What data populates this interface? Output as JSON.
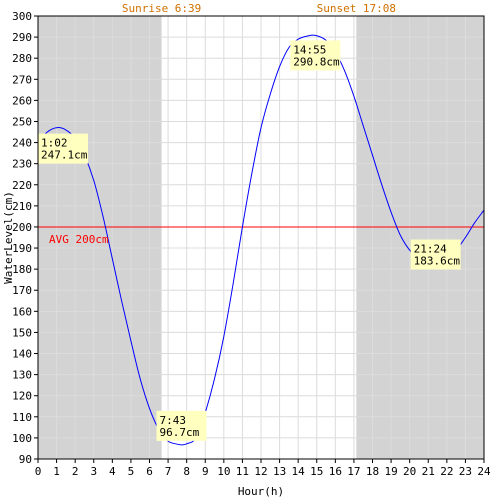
{
  "chart_data": {
    "type": "line",
    "title": "",
    "xlabel": "Hour(h)",
    "ylabel": "WaterLevel(cm)",
    "xlim": [
      0,
      24
    ],
    "ylim": [
      90,
      300
    ],
    "x_ticks": [
      0,
      1,
      2,
      3,
      4,
      5,
      6,
      7,
      8,
      9,
      10,
      11,
      12,
      13,
      14,
      15,
      16,
      17,
      18,
      19,
      20,
      21,
      22,
      23,
      24
    ],
    "y_ticks": [
      90,
      100,
      110,
      120,
      130,
      140,
      150,
      160,
      170,
      180,
      190,
      200,
      210,
      220,
      230,
      240,
      250,
      260,
      270,
      280,
      290,
      300
    ],
    "grid": true,
    "sunrise": {
      "label": "Sunrise 6:39",
      "hour": 6.65
    },
    "sunset": {
      "label": "Sunset 17:08",
      "hour": 17.13
    },
    "average": {
      "label": "AVG 200cm",
      "value": 200
    },
    "series": [
      {
        "name": "",
        "x": [
          0,
          0.5,
          1.03,
          1.5,
          2,
          2.5,
          3,
          3.5,
          4,
          4.5,
          5,
          5.5,
          6,
          6.5,
          7,
          7.5,
          7.72,
          8,
          8.5,
          9,
          9.5,
          10,
          10.5,
          11,
          11.5,
          12,
          12.5,
          13,
          13.5,
          14,
          14.5,
          14.92,
          15.5,
          16,
          16.5,
          17,
          17.5,
          18,
          18.5,
          19,
          19.5,
          20,
          20.5,
          21,
          21.4,
          22,
          22.5,
          23,
          23.5,
          24
        ],
        "values": [
          240,
          245,
          247.1,
          246,
          242,
          234,
          222,
          205,
          185,
          165,
          146,
          128,
          114,
          104,
          98.5,
          97,
          96.7,
          97.2,
          100,
          112,
          128,
          148,
          173,
          200,
          225,
          247,
          263,
          276,
          285,
          289,
          290.5,
          290.8,
          288.5,
          283,
          274,
          262,
          248,
          234,
          220,
          207,
          196,
          189,
          185,
          183.8,
          183.6,
          185,
          189,
          195,
          202,
          208
        ]
      }
    ],
    "annotations": [
      {
        "time": "1:02",
        "value_label": "247.1cm",
        "x": 1.03,
        "y": 247.1
      },
      {
        "time": "7:43",
        "value_label": "96.7cm",
        "x": 7.72,
        "y": 96.7
      },
      {
        "time": "14:55",
        "value_label": "290.8cm",
        "x": 14.92,
        "y": 290.8
      },
      {
        "time": "21:24",
        "value_label": "183.6cm",
        "x": 21.4,
        "y": 183.6
      }
    ],
    "colors": {
      "line": "#0000ff",
      "average": "#ff0000",
      "night": "#d3d3d3",
      "grid": "#dcdcdc",
      "sun_label": "#d07000",
      "annotation_bg": "#ffffc0",
      "axis_text": "#000000"
    }
  }
}
